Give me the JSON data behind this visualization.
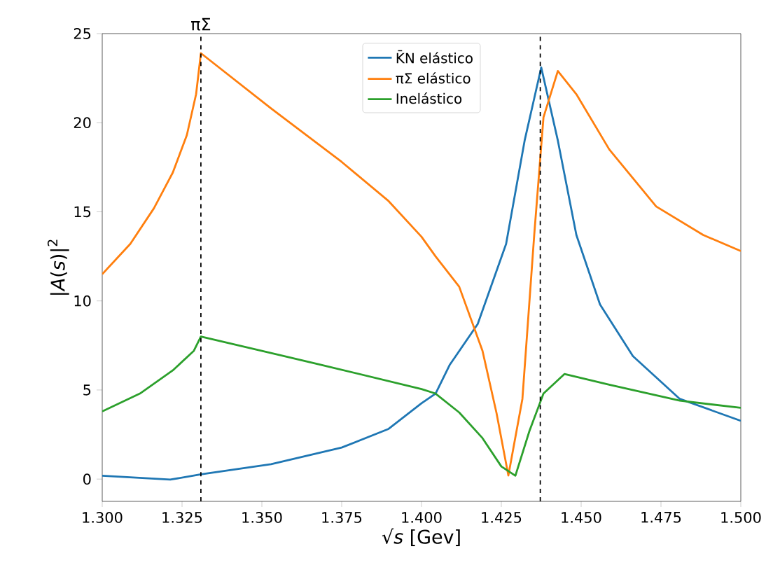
{
  "chart_data": {
    "type": "line",
    "xlabel": "√*s* [Gev]",
    "ylabel": "|*A*(*s*)|$^{2}$",
    "xlim": [
      1.3,
      1.5
    ],
    "ylim": [
      -1.25,
      25
    ],
    "xticks": [
      {
        "value": 1.3,
        "label": "1.300"
      },
      {
        "value": 1.325,
        "label": "1.325"
      },
      {
        "value": 1.35,
        "label": "1.350"
      },
      {
        "value": 1.375,
        "label": "1.375"
      },
      {
        "value": 1.4,
        "label": "1.400"
      },
      {
        "value": 1.425,
        "label": "1.425"
      },
      {
        "value": 1.45,
        "label": "1.450"
      },
      {
        "value": 1.475,
        "label": "1.475"
      },
      {
        "value": 1.5,
        "label": "1.500"
      }
    ],
    "yticks": [
      0,
      5,
      10,
      15,
      20,
      25
    ],
    "legend": "top",
    "line_style": "solid",
    "marker": "none",
    "ref_lines": [
      {
        "axis": "x",
        "value": 1.3309,
        "label": "πΣ",
        "color": "#000000",
        "line_style": "dashed"
      },
      {
        "axis": "x",
        "value": 1.4372,
        "color": "#000000",
        "line_style": "dashed"
      }
    ],
    "series": [
      {
        "name": "K̄N elástico",
        "color": "#1f77b4",
        "x": [
          1.3,
          1.3213,
          1.3309,
          1.3529,
          1.375,
          1.3897,
          1.4,
          1.4044,
          1.4088,
          1.4176,
          1.4265,
          1.4323,
          1.4375,
          1.4427,
          1.4485,
          1.4559,
          1.4662,
          1.4809,
          1.5
        ],
        "values": [
          0.19,
          -0.03,
          0.27,
          0.84,
          1.77,
          2.82,
          4.26,
          4.8,
          6.4,
          8.7,
          13.2,
          19.0,
          23.1,
          19.0,
          13.7,
          9.8,
          6.9,
          4.5,
          3.27
        ]
      },
      {
        "name": "πΣ elástico",
        "color": "#ff7f0e",
        "x": [
          1.3,
          1.3088,
          1.3162,
          1.3221,
          1.3265,
          1.3294,
          1.3309,
          1.3529,
          1.375,
          1.3897,
          1.4,
          1.4044,
          1.4118,
          1.4191,
          1.4235,
          1.4272,
          1.4316,
          1.4353,
          1.4382,
          1.4427,
          1.4485,
          1.4588,
          1.4735,
          1.4882,
          1.5
        ],
        "values": [
          11.5,
          13.2,
          15.2,
          17.2,
          19.3,
          21.6,
          23.9,
          20.8,
          17.8,
          15.6,
          13.6,
          12.5,
          10.8,
          7.2,
          3.7,
          0.2,
          4.5,
          13.7,
          20.3,
          22.9,
          21.6,
          18.5,
          15.3,
          13.7,
          12.8
        ]
      },
      {
        "name": "Inelástico",
        "color": "#2ca02c",
        "x": [
          1.3,
          1.3118,
          1.3221,
          1.3287,
          1.3309,
          1.3677,
          1.4,
          1.4044,
          1.4118,
          1.4191,
          1.425,
          1.4294,
          1.4338,
          1.4382,
          1.4448,
          1.4588,
          1.4809,
          1.5
        ],
        "values": [
          3.8,
          4.8,
          6.1,
          7.2,
          8.0,
          6.45,
          5.05,
          4.8,
          3.74,
          2.3,
          0.71,
          0.19,
          2.7,
          4.8,
          5.9,
          5.3,
          4.4,
          4.0
        ]
      }
    ]
  }
}
